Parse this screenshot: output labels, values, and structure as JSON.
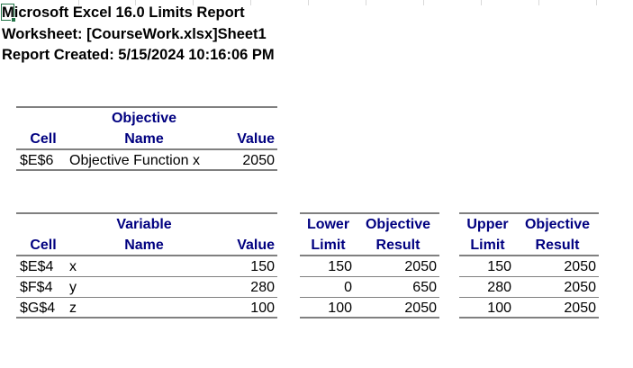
{
  "report": {
    "title": "Microsoft Excel 16.0 Limits Report",
    "title_first_char": "M",
    "title_rest": "icrosoft Excel 16.0 Limits Report",
    "worksheet": "Worksheet: [CourseWork.xlsx]Sheet1",
    "created": "Report Created: 5/15/2024 10:16:06 PM"
  },
  "objective_table": {
    "headers": {
      "cell": "Cell",
      "name_top": "Objective",
      "name_bottom": "Name",
      "value": "Value"
    },
    "rows": [
      {
        "cell": "$E$6",
        "name": "Objective Function  x",
        "value": "2050"
      }
    ]
  },
  "variable_table": {
    "headers": {
      "cell": "Cell",
      "name_top": "Variable",
      "name_bottom": "Name",
      "value": "Value",
      "lower_top": "Lower",
      "lower_bottom": "Limit",
      "lower_obj_top": "Objective",
      "lower_obj_bottom": "Result",
      "upper_top": "Upper",
      "upper_bottom": "Limit",
      "upper_obj_top": "Objective",
      "upper_obj_bottom": "Result"
    },
    "rows": [
      {
        "cell": "$E$4",
        "name": "x",
        "value": "150",
        "lower": "150",
        "lower_result": "2050",
        "upper": "150",
        "upper_result": "2050"
      },
      {
        "cell": "$F$4",
        "name": "y",
        "value": "280",
        "lower": "0",
        "lower_result": "650",
        "upper": "280",
        "upper_result": "2050"
      },
      {
        "cell": "$G$4",
        "name": "z",
        "value": "100",
        "lower": "100",
        "lower_result": "2050",
        "upper": "100",
        "upper_result": "2050"
      }
    ]
  },
  "colors": {
    "header_text": "#000080",
    "rule": "#808080",
    "cell_cursor": "#217346"
  }
}
